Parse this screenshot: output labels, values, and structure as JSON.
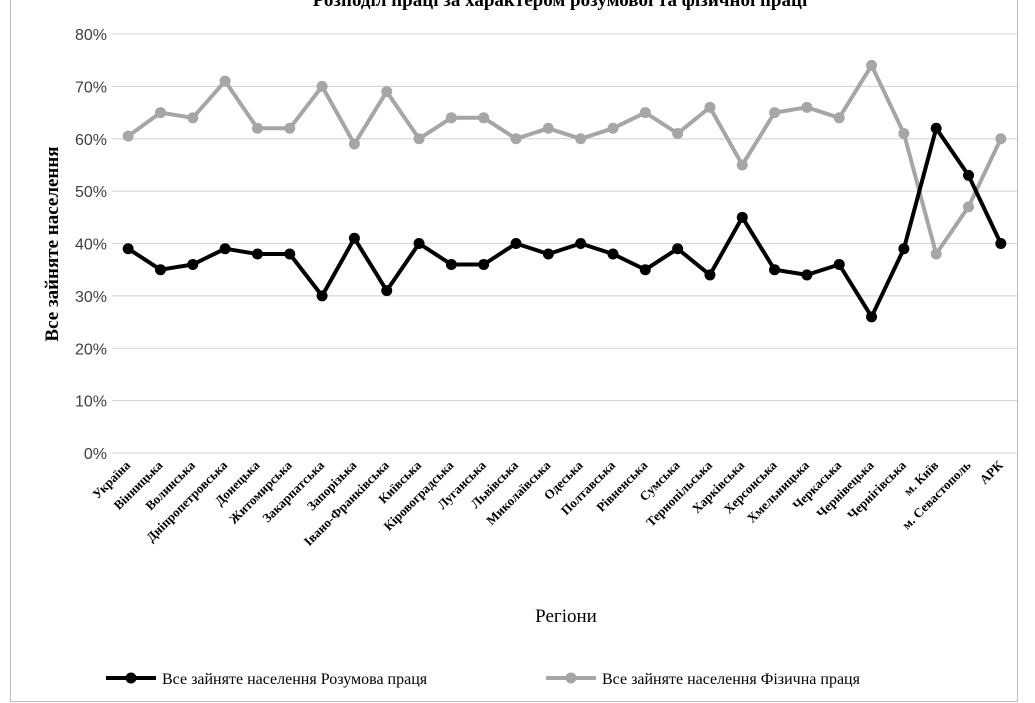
{
  "chart_data": {
    "type": "line",
    "title": "Розподіл праці за характером розумової та фізичної праці",
    "xlabel": "Регіони",
    "ylabel": "Все зайняте населення",
    "ylim": [
      0,
      0.8
    ],
    "yticks": [
      "0%",
      "10%",
      "20%",
      "30%",
      "40%",
      "50%",
      "60%",
      "70%",
      "80%"
    ],
    "grid": true,
    "legend_position": "bottom",
    "categories": [
      "Україна",
      "Вінницька",
      "Волинська",
      "Дніпропетровська",
      "Донецька",
      "Житомирська",
      "Закарпатська",
      "Запорізька",
      "Івано-Франківська",
      "Київська",
      "Кіровоградська",
      "Луганська",
      "Львівська",
      "Миколаївська",
      "Одеська",
      "Полтавська",
      "Рівненська",
      "Сумська",
      "Тернопільська",
      "Харківська",
      "Херсонська",
      "Хмельницька",
      "Черкаська",
      "Чернівецька",
      "Чернігівська",
      "м. Київ",
      "м. Севастополь",
      "АРК"
    ],
    "series": [
      {
        "name": "Все зайняте населення Розумова праця",
        "color": "#000000",
        "values": [
          0.39,
          0.35,
          0.36,
          0.39,
          0.38,
          0.38,
          0.3,
          0.41,
          0.31,
          0.4,
          0.36,
          0.36,
          0.4,
          0.38,
          0.4,
          0.38,
          0.35,
          0.39,
          0.34,
          0.45,
          0.35,
          0.34,
          0.36,
          0.26,
          0.39,
          0.62,
          0.53,
          0.4
        ]
      },
      {
        "name": "Все зайняте населення Фізична праця",
        "color": "#a6a6a6",
        "values": [
          0.605,
          0.65,
          0.64,
          0.71,
          0.62,
          0.62,
          0.7,
          0.59,
          0.69,
          0.6,
          0.64,
          0.64,
          0.6,
          0.62,
          0.6,
          0.62,
          0.65,
          0.61,
          0.66,
          0.55,
          0.65,
          0.66,
          0.64,
          0.74,
          0.61,
          0.38,
          0.47,
          0.6
        ]
      }
    ]
  }
}
